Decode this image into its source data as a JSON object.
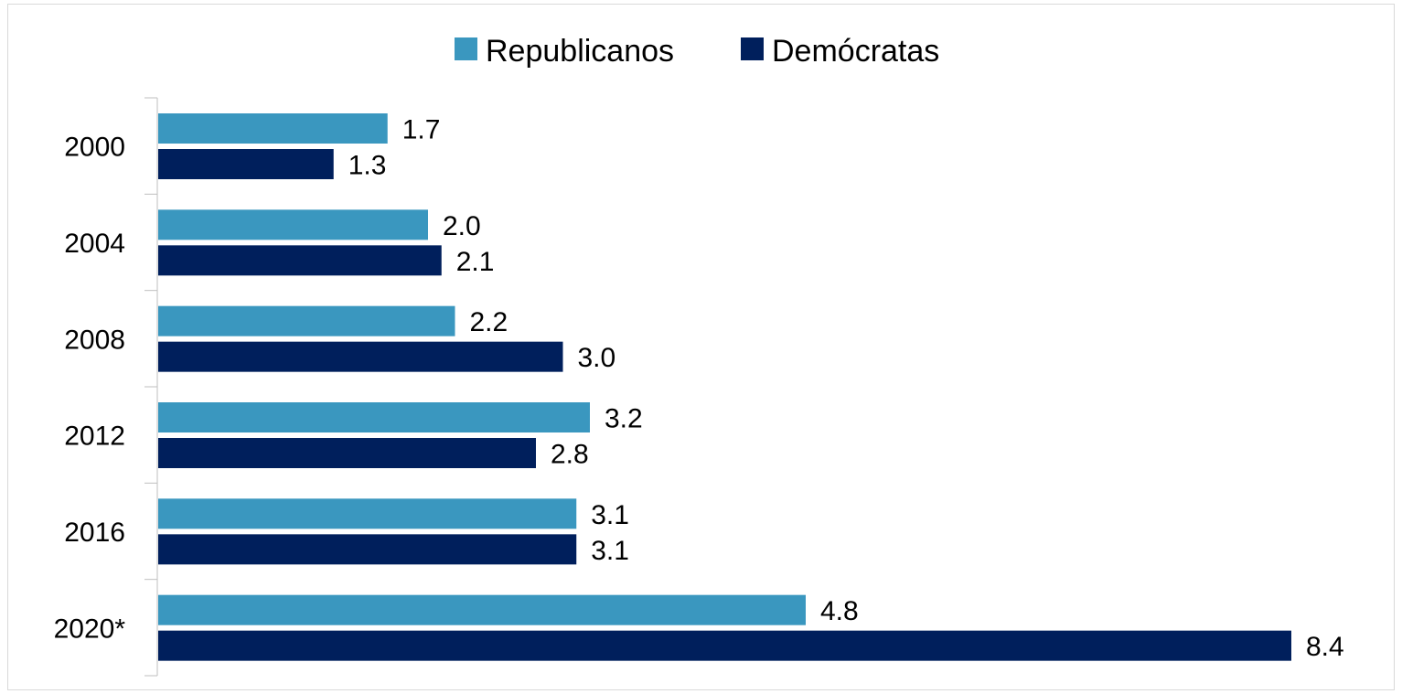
{
  "chart_data": {
    "type": "bar",
    "orientation": "horizontal",
    "categories": [
      "2000",
      "2004",
      "2008",
      "2012",
      "2016",
      "2020*"
    ],
    "series": [
      {
        "name": "Republicanos",
        "color": "#3a97bf",
        "values": [
          1.7,
          2.0,
          2.2,
          3.2,
          3.1,
          4.8
        ],
        "labels": [
          "1.7",
          "2.0",
          "2.2",
          "3.2",
          "3.1",
          "4.8"
        ]
      },
      {
        "name": "Demócratas",
        "color": "#001f5c",
        "values": [
          1.3,
          2.1,
          3.0,
          2.8,
          3.1,
          8.4
        ],
        "labels": [
          "1.3",
          "2.1",
          "3.0",
          "2.8",
          "3.1",
          "8.4"
        ]
      }
    ],
    "title": "",
    "xlabel": "",
    "ylabel": "",
    "xlim": [
      0,
      8.4
    ],
    "grid": false,
    "legend_position": "top"
  }
}
